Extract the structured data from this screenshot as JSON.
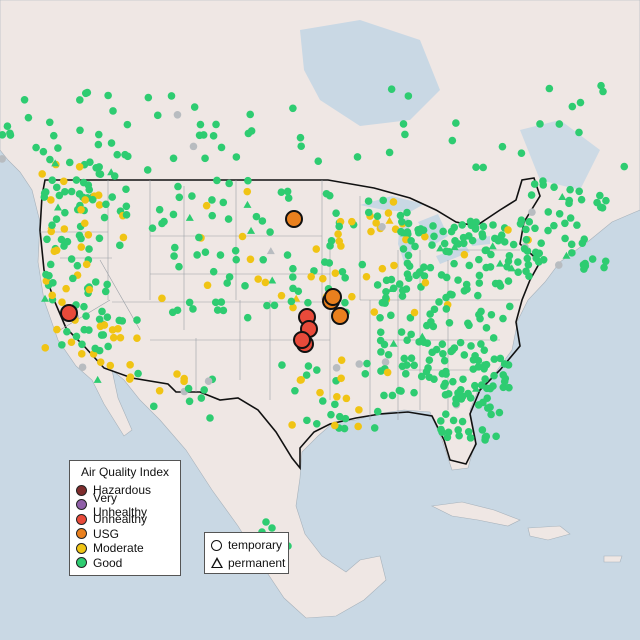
{
  "legend": {
    "title": "Air Quality Index",
    "categories": [
      {
        "label": "Hazardous",
        "color": "#7e2c2c"
      },
      {
        "label": "Very Unhealthy",
        "color": "#8f5fa8"
      },
      {
        "label": "Unhealthy",
        "color": "#e84a3a"
      },
      {
        "label": "USG",
        "color": "#e9801e"
      },
      {
        "label": "Moderate",
        "color": "#f0c414"
      },
      {
        "label": "Good",
        "color": "#2ecc71"
      }
    ]
  },
  "site_legend": {
    "temporary": "temporary",
    "permanent": "permanent"
  },
  "no_data_color": "#b8bcc0",
  "large_markers": {
    "unhealthy_count": 5,
    "usg_count": 4
  }
}
